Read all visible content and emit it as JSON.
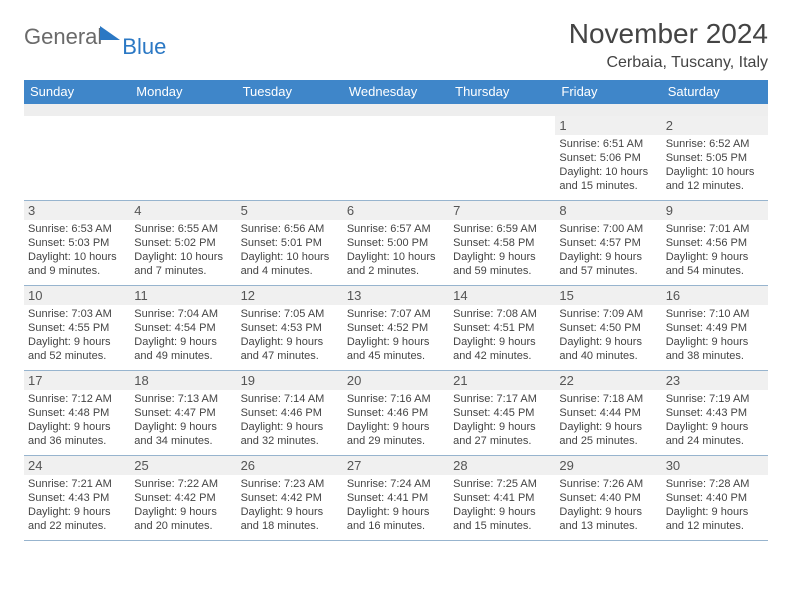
{
  "logo": {
    "text1": "General",
    "text2": "Blue"
  },
  "title": "November 2024",
  "location": "Cerbaia, Tuscany, Italy",
  "colors": {
    "header_bar": "#3f86c9",
    "daynum_bg": "#f0f0f0",
    "week_border": "#97b4ce",
    "text": "#333333",
    "logo_gray": "#6a6a6a",
    "logo_blue": "#2b78c4"
  },
  "fonts": {
    "title_size": 28,
    "location_size": 16,
    "dow_size": 13,
    "daynum_size": 13,
    "info_size": 11
  },
  "dow": [
    "Sunday",
    "Monday",
    "Tuesday",
    "Wednesday",
    "Thursday",
    "Friday",
    "Saturday"
  ],
  "weeks": [
    [
      {
        "blank": true
      },
      {
        "blank": true
      },
      {
        "blank": true
      },
      {
        "blank": true
      },
      {
        "blank": true
      },
      {
        "n": "1",
        "sr": "6:51 AM",
        "ss": "5:06 PM",
        "dl": "10 hours and 15 minutes."
      },
      {
        "n": "2",
        "sr": "6:52 AM",
        "ss": "5:05 PM",
        "dl": "10 hours and 12 minutes."
      }
    ],
    [
      {
        "n": "3",
        "sr": "6:53 AM",
        "ss": "5:03 PM",
        "dl": "10 hours and 9 minutes."
      },
      {
        "n": "4",
        "sr": "6:55 AM",
        "ss": "5:02 PM",
        "dl": "10 hours and 7 minutes."
      },
      {
        "n": "5",
        "sr": "6:56 AM",
        "ss": "5:01 PM",
        "dl": "10 hours and 4 minutes."
      },
      {
        "n": "6",
        "sr": "6:57 AM",
        "ss": "5:00 PM",
        "dl": "10 hours and 2 minutes."
      },
      {
        "n": "7",
        "sr": "6:59 AM",
        "ss": "4:58 PM",
        "dl": "9 hours and 59 minutes."
      },
      {
        "n": "8",
        "sr": "7:00 AM",
        "ss": "4:57 PM",
        "dl": "9 hours and 57 minutes."
      },
      {
        "n": "9",
        "sr": "7:01 AM",
        "ss": "4:56 PM",
        "dl": "9 hours and 54 minutes."
      }
    ],
    [
      {
        "n": "10",
        "sr": "7:03 AM",
        "ss": "4:55 PM",
        "dl": "9 hours and 52 minutes."
      },
      {
        "n": "11",
        "sr": "7:04 AM",
        "ss": "4:54 PM",
        "dl": "9 hours and 49 minutes."
      },
      {
        "n": "12",
        "sr": "7:05 AM",
        "ss": "4:53 PM",
        "dl": "9 hours and 47 minutes."
      },
      {
        "n": "13",
        "sr": "7:07 AM",
        "ss": "4:52 PM",
        "dl": "9 hours and 45 minutes."
      },
      {
        "n": "14",
        "sr": "7:08 AM",
        "ss": "4:51 PM",
        "dl": "9 hours and 42 minutes."
      },
      {
        "n": "15",
        "sr": "7:09 AM",
        "ss": "4:50 PM",
        "dl": "9 hours and 40 minutes."
      },
      {
        "n": "16",
        "sr": "7:10 AM",
        "ss": "4:49 PM",
        "dl": "9 hours and 38 minutes."
      }
    ],
    [
      {
        "n": "17",
        "sr": "7:12 AM",
        "ss": "4:48 PM",
        "dl": "9 hours and 36 minutes."
      },
      {
        "n": "18",
        "sr": "7:13 AM",
        "ss": "4:47 PM",
        "dl": "9 hours and 34 minutes."
      },
      {
        "n": "19",
        "sr": "7:14 AM",
        "ss": "4:46 PM",
        "dl": "9 hours and 32 minutes."
      },
      {
        "n": "20",
        "sr": "7:16 AM",
        "ss": "4:46 PM",
        "dl": "9 hours and 29 minutes."
      },
      {
        "n": "21",
        "sr": "7:17 AM",
        "ss": "4:45 PM",
        "dl": "9 hours and 27 minutes."
      },
      {
        "n": "22",
        "sr": "7:18 AM",
        "ss": "4:44 PM",
        "dl": "9 hours and 25 minutes."
      },
      {
        "n": "23",
        "sr": "7:19 AM",
        "ss": "4:43 PM",
        "dl": "9 hours and 24 minutes."
      }
    ],
    [
      {
        "n": "24",
        "sr": "7:21 AM",
        "ss": "4:43 PM",
        "dl": "9 hours and 22 minutes."
      },
      {
        "n": "25",
        "sr": "7:22 AM",
        "ss": "4:42 PM",
        "dl": "9 hours and 20 minutes."
      },
      {
        "n": "26",
        "sr": "7:23 AM",
        "ss": "4:42 PM",
        "dl": "9 hours and 18 minutes."
      },
      {
        "n": "27",
        "sr": "7:24 AM",
        "ss": "4:41 PM",
        "dl": "9 hours and 16 minutes."
      },
      {
        "n": "28",
        "sr": "7:25 AM",
        "ss": "4:41 PM",
        "dl": "9 hours and 15 minutes."
      },
      {
        "n": "29",
        "sr": "7:26 AM",
        "ss": "4:40 PM",
        "dl": "9 hours and 13 minutes."
      },
      {
        "n": "30",
        "sr": "7:28 AM",
        "ss": "4:40 PM",
        "dl": "9 hours and 12 minutes."
      }
    ]
  ],
  "labels": {
    "sunrise": "Sunrise:",
    "sunset": "Sunset:",
    "daylight": "Daylight:"
  }
}
